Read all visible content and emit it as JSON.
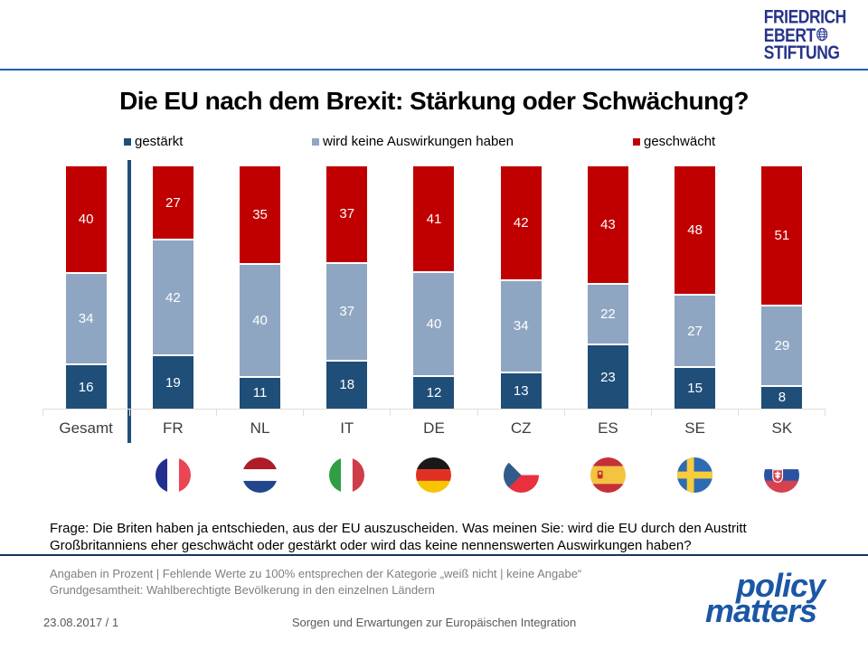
{
  "header": {
    "fes_logo_lines": [
      "FRIEDRICH",
      "EBERT",
      "STIFTUNG"
    ],
    "fes_logo_icon": "globe-icon"
  },
  "title": "Die EU nach dem Brexit: Stärkung oder Schwächung?",
  "legend": {
    "items": [
      {
        "label": "gestärkt",
        "color": "#1F4E79"
      },
      {
        "label": "wird keine Auswirkungen haben",
        "color": "#8FA6C2"
      },
      {
        "label": "geschwächt",
        "color": "#C00000"
      }
    ]
  },
  "chart_data": {
    "type": "bar",
    "stacked": true,
    "normalized_bar_height": true,
    "unit": "Prozent",
    "categories": [
      "Gesamt",
      "FR",
      "NL",
      "IT",
      "DE",
      "CZ",
      "ES",
      "SE",
      "SK"
    ],
    "series": [
      {
        "name": "gestärkt",
        "color": "#1F4E79",
        "values": [
          16,
          19,
          11,
          18,
          12,
          13,
          23,
          15,
          8
        ]
      },
      {
        "name": "wird keine Auswirkungen haben",
        "color": "#8FA6C2",
        "values": [
          34,
          42,
          40,
          37,
          40,
          34,
          22,
          27,
          29
        ]
      },
      {
        "name": "geschwächt",
        "color": "#C00000",
        "values": [
          40,
          27,
          35,
          37,
          41,
          42,
          43,
          48,
          51
        ]
      }
    ],
    "title": "Die EU nach dem Brexit: Stärkung oder Schwächung?",
    "xlabel": "",
    "ylabel": "",
    "legend_position": "top",
    "grid": false,
    "flags": [
      "",
      "flag-france-icon",
      "flag-netherlands-icon",
      "flag-italy-icon",
      "flag-germany-icon",
      "flag-czech-republic-icon",
      "flag-spain-icon",
      "flag-sweden-icon",
      "flag-slovakia-icon"
    ]
  },
  "footer": {
    "question": "Frage: Die Briten haben ja entschieden, aus der EU auszuscheiden. Was meinen Sie: wird die EU durch den Austritt Großbritanniens eher geschwächt oder gestärkt oder wird das keine nennenswerten Auswirkungen haben?",
    "note_percent": "Angaben in Prozent | Fehlende Werte zu 100% entsprechen der Kategorie „weiß nicht | keine Angabe“",
    "note_population": "Grundgesamtheit: Wahlberechtigte Bevölkerung in den einzelnen Ländern",
    "date_page": "23.08.2017  / 1",
    "topic": "Sorgen und Erwartungen zur Europäischen Integration",
    "brand_line1": "policy",
    "brand_line2": "matters"
  },
  "colors": {
    "header_rule": "#1F5FA9",
    "footer_rule": "#17365D",
    "divider": "#1F4E79",
    "fes_logo": "#27348B",
    "brand_logo": "#1B57A5",
    "axis": "#E2DED6"
  }
}
